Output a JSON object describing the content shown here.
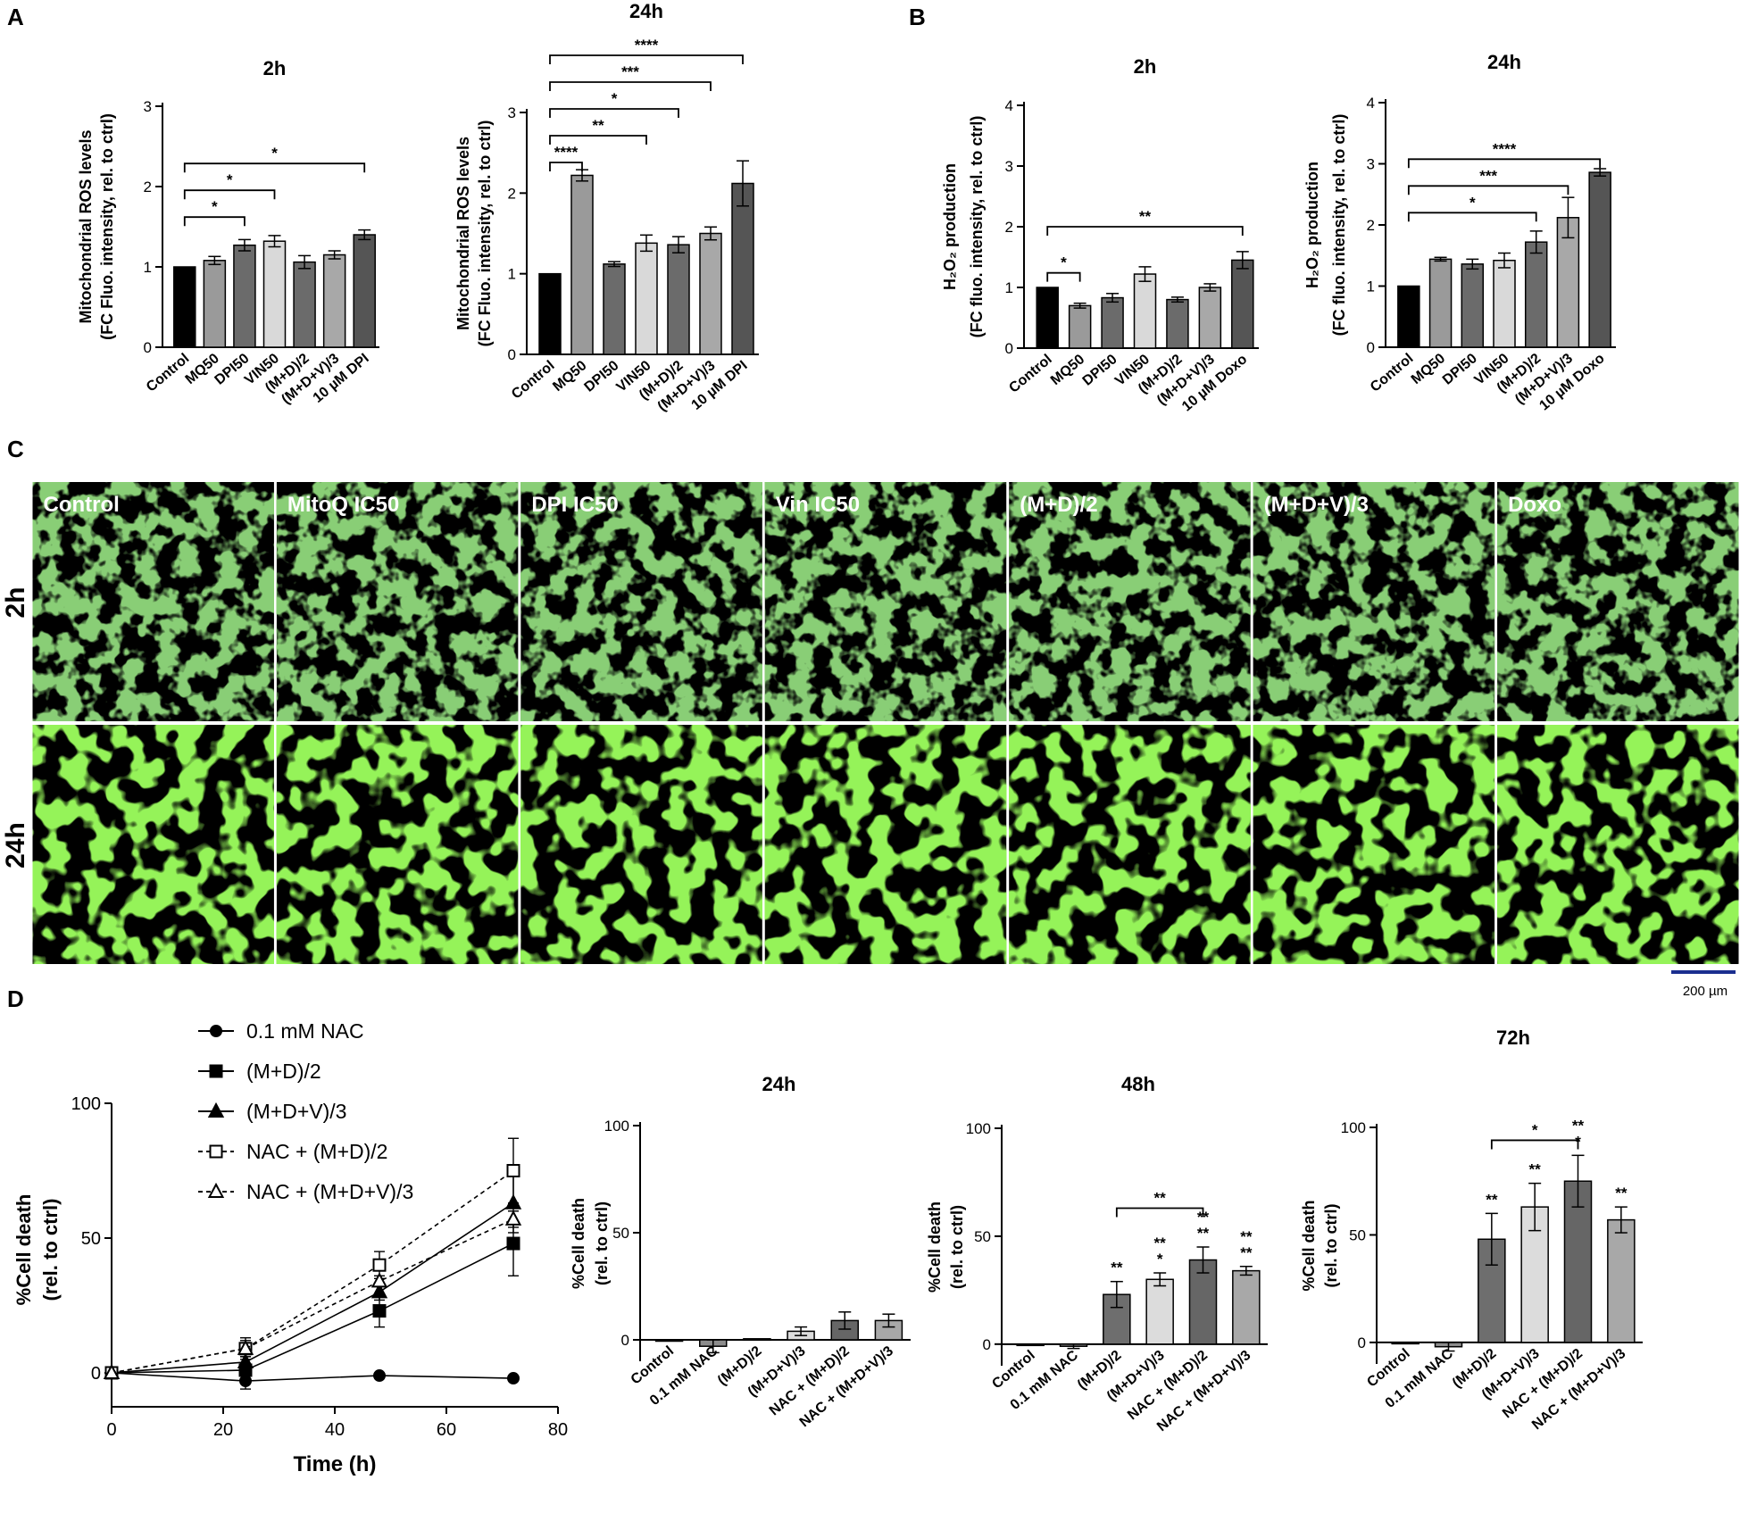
{
  "panel_letters": {
    "a": "A",
    "b": "B",
    "c": "C",
    "d": "D"
  },
  "panel_c": {
    "columns": [
      "Control",
      "MitoQ IC50",
      "DPI IC50",
      "Vin IC50",
      "(M+D)/2",
      "(M+D+V)/3",
      "Doxo"
    ],
    "rows": [
      "2h",
      "24h"
    ],
    "scale_bar": "200 µm",
    "colors": {
      "cells_2h": "#3f9a2c",
      "cells_24h": "#44dd1c",
      "background": "#000000"
    }
  },
  "chart_data": [
    {
      "type": "bar",
      "panel": "A",
      "title": "2h",
      "ylabel_lines": [
        "Mitochondrial ROS levels",
        "(FC Fluo. intensity, rel. to ctrl)"
      ],
      "categories": [
        "Control",
        "MQ50",
        "DPI50",
        "VIN50",
        "(M+D)/2",
        "(M+D+V)/3",
        "10 µM DPI"
      ],
      "values": [
        1.0,
        1.08,
        1.27,
        1.32,
        1.06,
        1.15,
        1.4
      ],
      "errors": [
        0.0,
        0.05,
        0.07,
        0.07,
        0.08,
        0.05,
        0.06
      ],
      "colors": [
        "#000000",
        "#9a9a9a",
        "#6b6b6b",
        "#d9d9d9",
        "#6b6b6b",
        "#a8a8a8",
        "#555555"
      ],
      "ylim": [
        0,
        3
      ],
      "yticks": [
        0,
        1,
        2,
        3
      ],
      "brackets": [
        {
          "from": 0,
          "to": 3,
          "label": "*"
        },
        {
          "from": 0,
          "to": 2,
          "label": "*"
        },
        {
          "from": 0,
          "to": 6,
          "label": "*"
        }
      ]
    },
    {
      "type": "bar",
      "panel": "A",
      "title": "24h",
      "ylabel_lines": [
        "Mitochondrial ROS levels",
        "(FC Fluo. intensity, rel. to ctrl)"
      ],
      "categories": [
        "Control",
        "MQ50",
        "DPI50",
        "VIN50",
        "(M+D)/2",
        "(M+D+V)/3",
        "10 µM DPI"
      ],
      "values": [
        1.0,
        2.22,
        1.12,
        1.38,
        1.36,
        1.5,
        2.12
      ],
      "errors": [
        0.0,
        0.07,
        0.03,
        0.1,
        0.1,
        0.08,
        0.28
      ],
      "colors": [
        "#000000",
        "#9a9a9a",
        "#6b6b6b",
        "#d9d9d9",
        "#6b6b6b",
        "#a8a8a8",
        "#555555"
      ],
      "ylim": [
        0,
        3
      ],
      "yticks": [
        0,
        1,
        2,
        3
      ],
      "brackets": [
        {
          "from": 0,
          "to": 1,
          "label": "****"
        },
        {
          "from": 0,
          "to": 3,
          "label": "**"
        },
        {
          "from": 0,
          "to": 4,
          "label": "*"
        },
        {
          "from": 0,
          "to": 5,
          "label": "***"
        },
        {
          "from": 0,
          "to": 6,
          "label": "****"
        }
      ]
    },
    {
      "type": "bar",
      "panel": "B",
      "title": "2h",
      "ylabel_lines": [
        "H₂O₂ production",
        "(FC fluo. intensity, rel. to ctrl)"
      ],
      "categories": [
        "Control",
        "MQ50",
        "DPI50",
        "VIN50",
        "(M+D)/2",
        "(M+D+V)/3",
        "10 µM Doxo"
      ],
      "values": [
        1.0,
        0.7,
        0.83,
        1.22,
        0.8,
        1.0,
        1.45
      ],
      "errors": [
        0.0,
        0.04,
        0.07,
        0.12,
        0.04,
        0.06,
        0.14
      ],
      "colors": [
        "#000000",
        "#9a9a9a",
        "#6b6b6b",
        "#d9d9d9",
        "#6b6b6b",
        "#a8a8a8",
        "#555555"
      ],
      "ylim": [
        0,
        4
      ],
      "yticks": [
        0,
        1,
        2,
        3,
        4
      ],
      "brackets": [
        {
          "from": 0,
          "to": 1,
          "label": "*"
        },
        {
          "from": 0,
          "to": 6,
          "label": "**"
        }
      ]
    },
    {
      "type": "bar",
      "panel": "B",
      "title": "24h",
      "ylabel_lines": [
        "H₂O₂ production",
        "(FC fluo. intensity, rel. to ctrl)"
      ],
      "categories": [
        "Control",
        "MQ50",
        "DPI50",
        "VIN50",
        "(M+D)/2",
        "(M+D+V)/3",
        "10 µM Doxo"
      ],
      "values": [
        1.0,
        1.44,
        1.36,
        1.42,
        1.72,
        2.12,
        2.86
      ],
      "errors": [
        0.0,
        0.03,
        0.08,
        0.12,
        0.18,
        0.33,
        0.06
      ],
      "colors": [
        "#000000",
        "#9a9a9a",
        "#6b6b6b",
        "#d9d9d9",
        "#6b6b6b",
        "#a8a8a8",
        "#555555"
      ],
      "ylim": [
        0,
        4
      ],
      "yticks": [
        0,
        1,
        2,
        3,
        4
      ],
      "brackets": [
        {
          "from": 0,
          "to": 4,
          "label": "*"
        },
        {
          "from": 0,
          "to": 5,
          "label": "***"
        },
        {
          "from": 0,
          "to": 6,
          "label": "****"
        }
      ]
    },
    {
      "type": "line",
      "panel": "D",
      "xlabel": "Time (h)",
      "ylabel_lines": [
        "%Cell death",
        "(rel. to ctrl)"
      ],
      "xlim": [
        0,
        80
      ],
      "xticks": [
        0,
        20,
        40,
        60,
        80
      ],
      "ylim": [
        0,
        100
      ],
      "yticks": [
        0,
        50,
        100
      ],
      "x": [
        0,
        24,
        48,
        72
      ],
      "series": [
        {
          "name": "0.1 mM NAC",
          "marker": "circle",
          "filled": true,
          "dashed": false,
          "values": [
            0,
            -3,
            -1,
            -2
          ],
          "errors": [
            0,
            3,
            1,
            1
          ]
        },
        {
          "name": "(M+D)/2",
          "marker": "square",
          "filled": true,
          "dashed": false,
          "values": [
            0,
            1,
            23,
            48
          ],
          "errors": [
            0,
            2,
            6,
            12
          ]
        },
        {
          "name": "(M+D+V)/3",
          "marker": "triangle",
          "filled": true,
          "dashed": false,
          "values": [
            0,
            4,
            30,
            63
          ],
          "errors": [
            0,
            2,
            3,
            11
          ]
        },
        {
          "name": "NAC + (M+D)/2",
          "marker": "square",
          "filled": false,
          "dashed": true,
          "values": [
            0,
            9,
            40,
            75
          ],
          "errors": [
            0,
            4,
            5,
            12
          ]
        },
        {
          "name": "NAC + (M+D+V)/3",
          "marker": "triangle",
          "filled": false,
          "dashed": true,
          "values": [
            0,
            9,
            34,
            57
          ],
          "errors": [
            0,
            3,
            2,
            3
          ]
        }
      ]
    },
    {
      "type": "bar",
      "panel": "D",
      "title": "24h",
      "ylabel_lines": [
        "%Cell death",
        "(rel. to ctrl)"
      ],
      "categories": [
        "Control",
        "0.1 mM NAC",
        "(M+D)/2",
        "(M+D+V)/3",
        "NAC + (M+D)/2",
        "NAC + (M+D+V)/3"
      ],
      "values": [
        0,
        -3,
        0.5,
        4,
        9,
        9
      ],
      "errors": [
        0,
        3,
        0,
        2,
        4,
        3
      ],
      "colors": [
        "#ffffff",
        "#8c8c8c",
        "#6e6e6e",
        "#dcdcdc",
        "#666666",
        "#a8a8a8"
      ],
      "ylim": [
        -10,
        100
      ],
      "yticks": [
        0,
        50,
        100
      ],
      "stars": [
        "",
        "",
        "",
        "",
        "",
        ""
      ],
      "brackets": []
    },
    {
      "type": "bar",
      "panel": "D",
      "title": "48h",
      "ylabel_lines": [
        "%Cell death",
        "(rel. to ctrl)"
      ],
      "categories": [
        "Control",
        "0.1 mM NAC",
        "(M+D)/2",
        "(M+D+V)/3",
        "NAC + (M+D)/2",
        "NAC + (M+D+V)/3"
      ],
      "values": [
        0,
        -1,
        23,
        30,
        39,
        34
      ],
      "errors": [
        0,
        1,
        6,
        3,
        6,
        2
      ],
      "colors": [
        "#ffffff",
        "#8c8c8c",
        "#6e6e6e",
        "#dcdcdc",
        "#666666",
        "#a8a8a8"
      ],
      "ylim": [
        -10,
        100
      ],
      "yticks": [
        0,
        50,
        100
      ],
      "stars": [
        "",
        "",
        "**",
        "**\n*",
        "**\n**",
        "**\n**"
      ],
      "brackets": [
        {
          "from": 2,
          "to": 4,
          "label": "**"
        }
      ]
    },
    {
      "type": "bar",
      "panel": "D",
      "title": "72h",
      "ylabel_lines": [
        "%Cell death",
        "(rel. to ctrl)"
      ],
      "categories": [
        "Control",
        "0.1 mM NAC",
        "(M+D)/2",
        "(M+D+V)/3",
        "NAC + (M+D)/2",
        "NAC + (M+D+V)/3"
      ],
      "values": [
        0,
        -2,
        48,
        63,
        75,
        57
      ],
      "errors": [
        0,
        2,
        12,
        11,
        12,
        6
      ],
      "colors": [
        "#ffffff",
        "#8c8c8c",
        "#6e6e6e",
        "#dcdcdc",
        "#666666",
        "#a8a8a8"
      ],
      "ylim": [
        -10,
        100
      ],
      "yticks": [
        0,
        50,
        100
      ],
      "stars": [
        "",
        "",
        "**",
        "**",
        "**\n*",
        "**"
      ],
      "brackets": [
        {
          "from": 2,
          "to": 4,
          "label": "*"
        }
      ]
    }
  ]
}
